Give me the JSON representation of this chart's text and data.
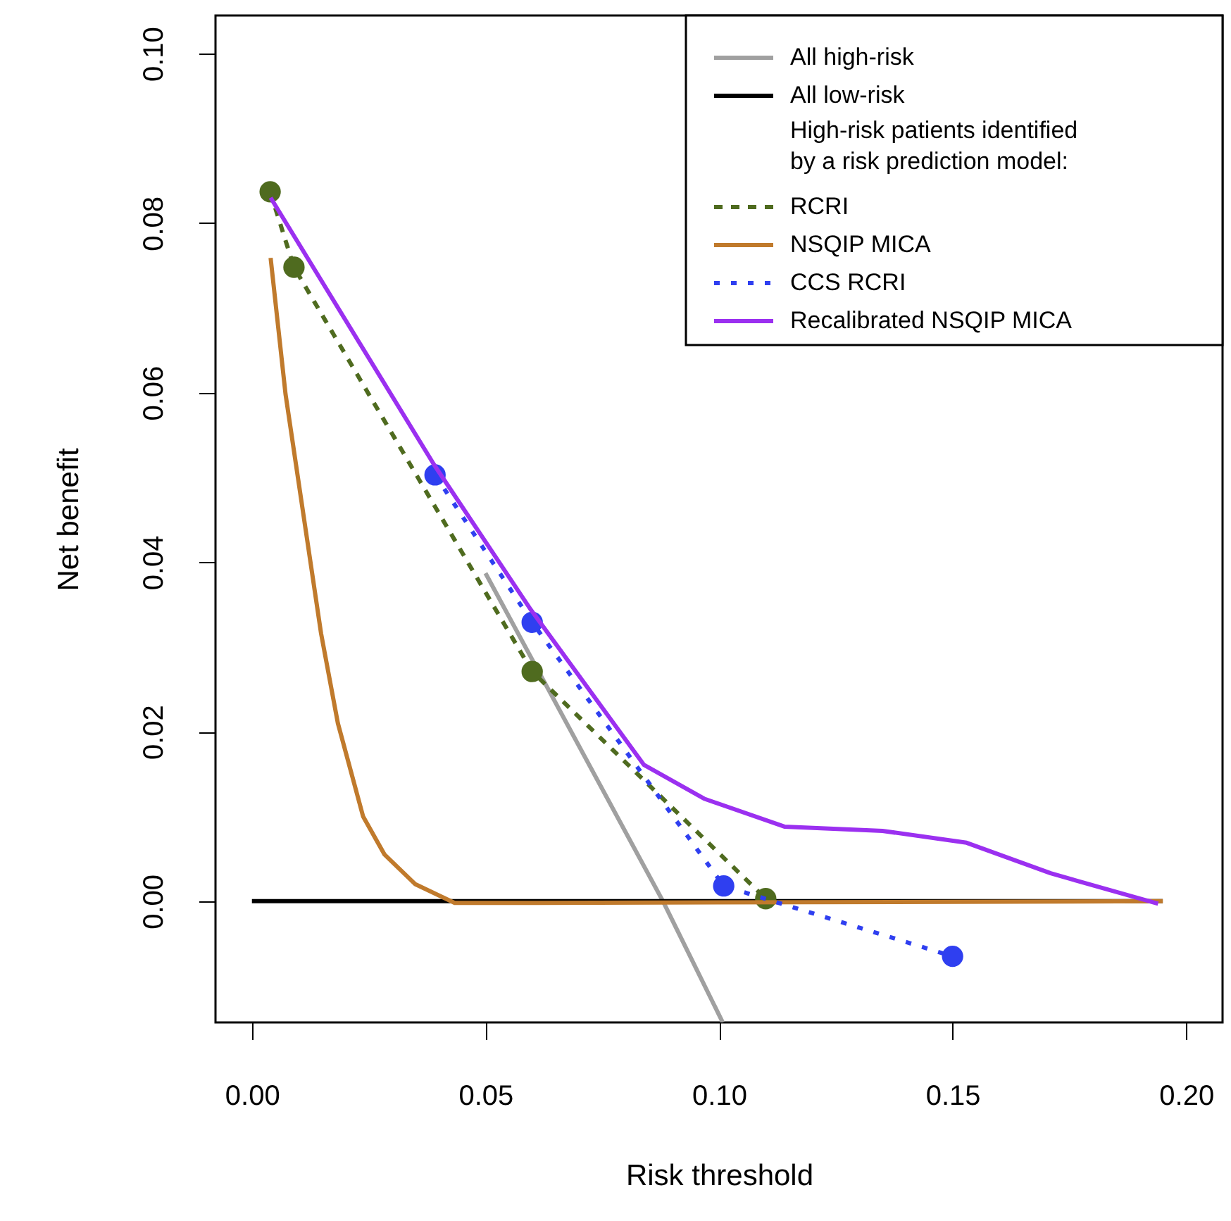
{
  "chart_data": {
    "type": "line",
    "xlabel": "Risk threshold",
    "ylabel": "Net benefit",
    "xlim": [
      -0.0078,
      0.2078
    ],
    "ylim": [
      -0.0143,
      0.1045
    ],
    "xticks": [
      {
        "value": 0,
        "label": "0.00"
      },
      {
        "value": 0.05,
        "label": "0.05"
      },
      {
        "value": 0.1,
        "label": "0.10"
      },
      {
        "value": 0.15,
        "label": "0.15"
      },
      {
        "value": 0.2,
        "label": "0.20"
      }
    ],
    "yticks": [
      {
        "value": 0,
        "label": "0.00"
      },
      {
        "value": 0.02,
        "label": "0.02"
      },
      {
        "value": 0.04,
        "label": "0.04"
      },
      {
        "value": 0.06,
        "label": "0.06"
      },
      {
        "value": 0.08,
        "label": "0.08"
      },
      {
        "value": 0.1,
        "label": "0.10"
      }
    ],
    "legend": "top right",
    "marker": "none",
    "line_style": "solid",
    "annotations": [
      "High-risk patients identified\nby a risk prediction model:"
    ],
    "series": [
      {
        "name": "All high-risk",
        "color": "#a0a0a0",
        "x": [
          0.05,
          0.088,
          0.1008
        ],
        "values": [
          0.0387,
          0,
          -0.0143
        ]
      },
      {
        "name": "All low-risk",
        "color": "#000000",
        "x": [
          0,
          0.195
        ],
        "values": [
          0,
          0
        ]
      },
      {
        "name": "RCRI",
        "color": "#4f6b1f",
        "line_style": "dashed",
        "marker": "circle",
        "x": [
          0.0039,
          0.009,
          0.06,
          0.11
        ],
        "values": [
          0.0837,
          0.0748,
          0.0271,
          0.0003
        ]
      },
      {
        "name": "NSQIP MICA",
        "color": "#c07a2c",
        "x": [
          0.004,
          0.0072,
          0.0148,
          0.0184,
          0.0238,
          0.0284,
          0.035,
          0.0434,
          0.0585,
          0.195
        ],
        "values": [
          0.0759,
          0.0598,
          0.0316,
          0.021,
          0.01,
          0.0055,
          0.002,
          -0.0002,
          -0.0002,
          0
        ]
      },
      {
        "name": "CCS RCRI",
        "color": "#2f3ff0",
        "line_style": "dotted",
        "marker": "circle",
        "x": [
          0.0392,
          0.06,
          0.101,
          0.15
        ],
        "values": [
          0.0503,
          0.0329,
          0.0018,
          -0.0065
        ]
      },
      {
        "name": "Recalibrated NSQIP MICA",
        "color": "#9b30f0",
        "x": [
          0.004,
          0.039,
          0.0597,
          0.0839,
          0.0968,
          0.114,
          0.135,
          0.153,
          0.171,
          0.194
        ],
        "values": [
          0.083,
          0.0515,
          0.0344,
          0.0161,
          0.0121,
          0.0088,
          0.0083,
          0.0069,
          0.0033,
          -0.0003
        ]
      }
    ]
  }
}
